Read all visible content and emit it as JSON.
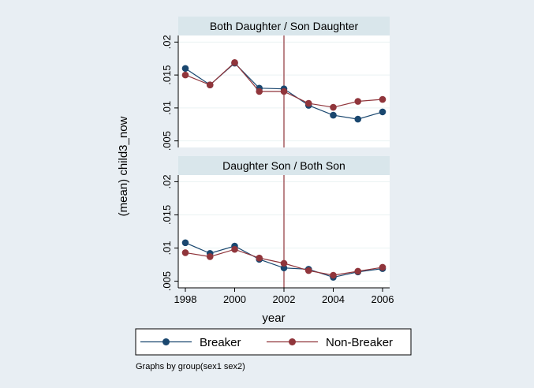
{
  "chart_data": {
    "type": "line",
    "x": [
      1998,
      1999,
      2000,
      2001,
      2002,
      2003,
      2004,
      2005,
      2006
    ],
    "xlabel": "year",
    "ylabel": "(mean) child3_now",
    "xlim": [
      1998,
      2006
    ],
    "x_ticks": [
      "1998",
      "2000",
      "2002",
      "2004",
      "2006"
    ],
    "reference_line_x": 2002,
    "legend_position": "bottom",
    "note": "Graphs by group(sex1 sex2)",
    "colors": {
      "breaker": "#1a476f",
      "non_breaker": "#90353b",
      "ref_line": "#90353b",
      "strip": "#d9e6eb"
    },
    "panels": [
      {
        "title": "Both Daughter / Son Daughter",
        "ylim": [
          0.004,
          0.021
        ],
        "y_ticks": [
          {
            "value": 0.02,
            "label": ".02"
          },
          {
            "value": 0.015,
            "label": ".015"
          },
          {
            "value": 0.01,
            "label": ".01"
          },
          {
            "value": 0.005,
            "label": ".005"
          }
        ],
        "series": [
          {
            "name": "Breaker",
            "values": [
              0.016,
              0.0135,
              0.0168,
              0.013,
              0.0129,
              0.0104,
              0.0089,
              0.0083,
              0.0094
            ]
          },
          {
            "name": "Non-Breaker",
            "values": [
              0.015,
              0.0135,
              0.0169,
              0.0125,
              0.0125,
              0.0107,
              0.0101,
              0.011,
              0.0113
            ]
          }
        ]
      },
      {
        "title": "Daughter Son / Both Son",
        "ylim": [
          0.004,
          0.021
        ],
        "y_ticks": [
          {
            "value": 0.02,
            "label": ".02"
          },
          {
            "value": 0.015,
            "label": ".015"
          },
          {
            "value": 0.01,
            "label": ".01"
          },
          {
            "value": 0.005,
            "label": ".005"
          }
        ],
        "series": [
          {
            "name": "Breaker",
            "values": [
              0.0108,
              0.0092,
              0.0103,
              0.0083,
              0.007,
              0.0068,
              0.0056,
              0.0064,
              0.0069
            ]
          },
          {
            "name": "Non-Breaker",
            "values": [
              0.0093,
              0.0087,
              0.0098,
              0.0085,
              0.0077,
              0.0066,
              0.0059,
              0.0065,
              0.0071
            ]
          }
        ]
      }
    ],
    "legend": [
      {
        "name": "Breaker",
        "color": "#1a476f"
      },
      {
        "name": "Non-Breaker",
        "color": "#90353b"
      }
    ]
  }
}
